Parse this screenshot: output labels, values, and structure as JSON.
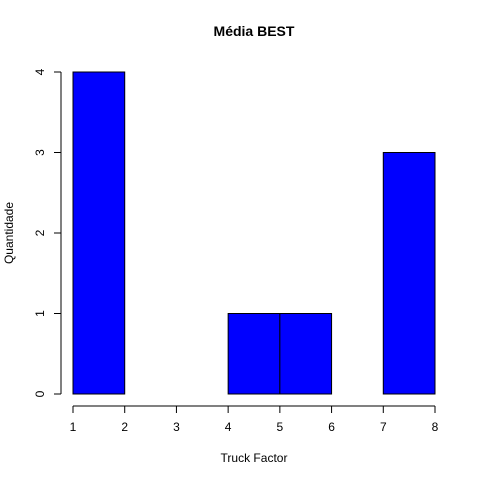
{
  "chart_data": {
    "type": "histogram",
    "title": "Média BEST",
    "xlabel": "Truck Factor",
    "ylabel": "Quantidade",
    "bins": [
      {
        "start": 1,
        "end": 2,
        "count": 4
      },
      {
        "start": 2,
        "end": 3,
        "count": 0
      },
      {
        "start": 3,
        "end": 4,
        "count": 0
      },
      {
        "start": 4,
        "end": 5,
        "count": 1
      },
      {
        "start": 5,
        "end": 6,
        "count": 1
      },
      {
        "start": 6,
        "end": 7,
        "count": 0
      },
      {
        "start": 7,
        "end": 8,
        "count": 3
      }
    ],
    "xlim": [
      1,
      8
    ],
    "ylim": [
      0,
      4
    ],
    "x_ticks": [
      "1",
      "2",
      "3",
      "4",
      "5",
      "6",
      "7",
      "8"
    ],
    "y_ticks": [
      "0",
      "1",
      "2",
      "3",
      "4"
    ],
    "bar_color": "#0000ff",
    "grid": false,
    "legend": "none"
  }
}
